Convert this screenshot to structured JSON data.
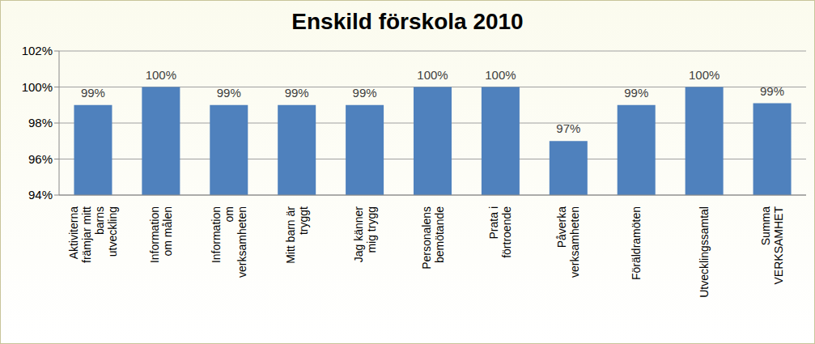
{
  "chart_data": {
    "type": "bar",
    "title": "Enskild förskola 2010",
    "categories": [
      "Aktiviterna främjar mitt barns utveckling",
      "Information om målen",
      "Information om verksamheten",
      "Mitt barn är tryggt",
      "Jag känner mig trygg",
      "Personalens bemötande",
      "Prata i förtroende",
      "Påverka verksamheten",
      "Föräldramöten",
      "Utvecklingssamtal",
      "Summa VERKSAMHET"
    ],
    "values": [
      99,
      100,
      99,
      99,
      99,
      100,
      100,
      97,
      99,
      100,
      99.1
    ],
    "value_labels": [
      "99%",
      "100%",
      "99%",
      "99%",
      "99%",
      "100%",
      "100%",
      "97%",
      "99%",
      "100%",
      "99%"
    ],
    "color": "#4f81bd",
    "ylim": [
      94,
      102
    ],
    "yticks": [
      {
        "value": 94,
        "label": "94%"
      },
      {
        "value": 96,
        "label": "96%"
      },
      {
        "value": 98,
        "label": "98%"
      },
      {
        "value": 100,
        "label": "100%"
      },
      {
        "value": 102,
        "label": "102%"
      }
    ],
    "grid": true,
    "data_labels": true
  }
}
